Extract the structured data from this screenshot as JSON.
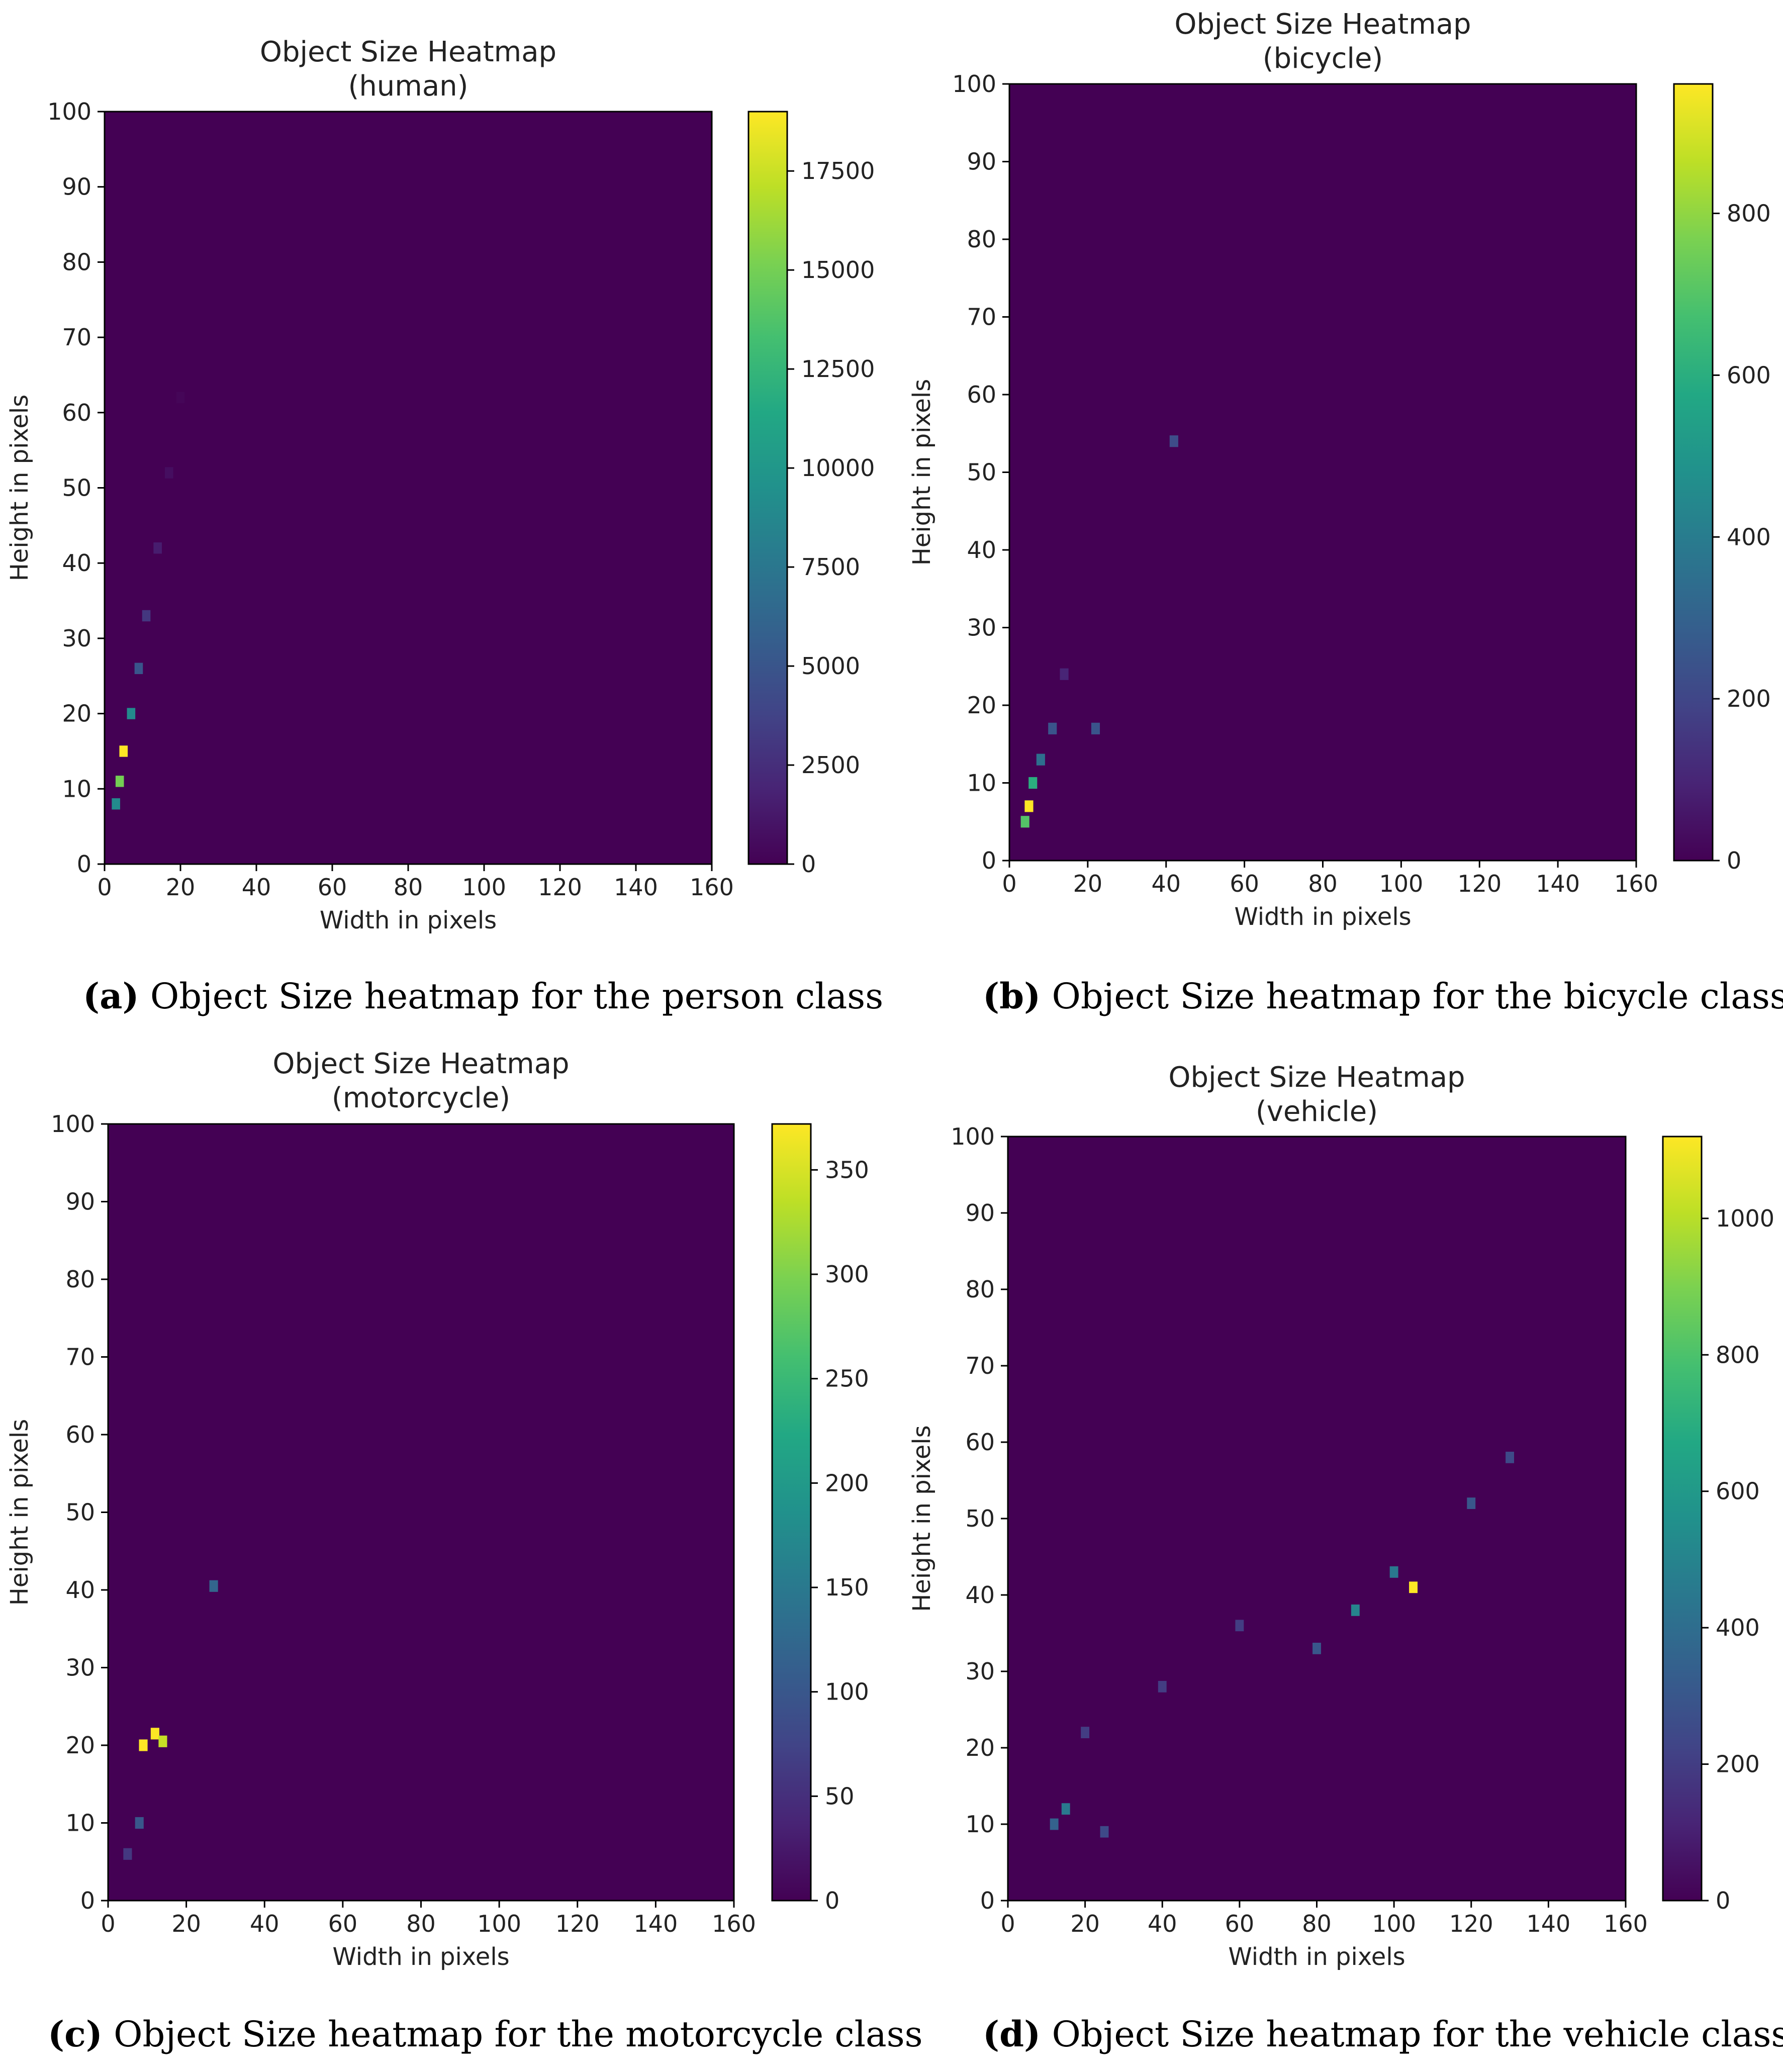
{
  "chart_data": [
    {
      "type": "heatmap",
      "title": "Object Size Heatmap",
      "subtitle": "(human)",
      "xlabel": "Width in pixels",
      "ylabel": "Height in pixels",
      "xlim": [
        0,
        160
      ],
      "ylim": [
        0,
        100
      ],
      "x_ticks": [
        "0",
        "20",
        "40",
        "60",
        "80",
        "100",
        "120",
        "140",
        "160"
      ],
      "y_ticks": [
        "0",
        "10",
        "20",
        "30",
        "40",
        "50",
        "60",
        "70",
        "80",
        "90",
        "100"
      ],
      "colorbar": {
        "min": 0,
        "max": 19000,
        "ticks": [
          "0",
          "2500",
          "5000",
          "7500",
          "10000",
          "12500",
          "15000",
          "17500"
        ],
        "tick_values": [
          0,
          2500,
          5000,
          7500,
          10000,
          12500,
          15000,
          17500
        ]
      },
      "colormap": "viridis",
      "hotspots": [
        {
          "x": 5,
          "y": 15,
          "count": 19000
        },
        {
          "x": 4,
          "y": 11,
          "count": 15000
        },
        {
          "x": 3,
          "y": 8,
          "count": 9000
        },
        {
          "x": 7,
          "y": 20,
          "count": 9000
        },
        {
          "x": 9,
          "y": 26,
          "count": 5000
        },
        {
          "x": 11,
          "y": 33,
          "count": 3000
        },
        {
          "x": 14,
          "y": 42,
          "count": 1500
        },
        {
          "x": 17,
          "y": 52,
          "count": 700
        },
        {
          "x": 20,
          "y": 62,
          "count": 250
        }
      ]
    },
    {
      "type": "heatmap",
      "title": "Object Size Heatmap",
      "subtitle": "(bicycle)",
      "xlabel": "Width in pixels",
      "ylabel": "Height in pixels",
      "xlim": [
        0,
        160
      ],
      "ylim": [
        0,
        100
      ],
      "x_ticks": [
        "0",
        "20",
        "40",
        "60",
        "80",
        "100",
        "120",
        "140",
        "160"
      ],
      "y_ticks": [
        "0",
        "10",
        "20",
        "30",
        "40",
        "50",
        "60",
        "70",
        "80",
        "90",
        "100"
      ],
      "colorbar": {
        "min": 0,
        "max": 960,
        "ticks": [
          "0",
          "200",
          "400",
          "600",
          "800"
        ],
        "tick_values": [
          0,
          200,
          400,
          600,
          800
        ]
      },
      "colormap": "viridis",
      "hotspots": [
        {
          "x": 5,
          "y": 7,
          "count": 960
        },
        {
          "x": 4,
          "y": 5,
          "count": 700
        },
        {
          "x": 6,
          "y": 10,
          "count": 600
        },
        {
          "x": 8,
          "y": 13,
          "count": 350
        },
        {
          "x": 11,
          "y": 17,
          "count": 250
        },
        {
          "x": 22,
          "y": 17,
          "count": 250
        },
        {
          "x": 14,
          "y": 24,
          "count": 100
        },
        {
          "x": 42,
          "y": 54,
          "count": 220
        }
      ]
    },
    {
      "type": "heatmap",
      "title": "Object Size Heatmap",
      "subtitle": "(motorcycle)",
      "xlabel": "Width in pixels",
      "ylabel": "Height in pixels",
      "xlim": [
        0,
        160
      ],
      "ylim": [
        0,
        100
      ],
      "x_ticks": [
        "0",
        "20",
        "40",
        "60",
        "80",
        "100",
        "120",
        "140",
        "160"
      ],
      "y_ticks": [
        "0",
        "10",
        "20",
        "30",
        "40",
        "50",
        "60",
        "70",
        "80",
        "90",
        "100"
      ],
      "colorbar": {
        "min": 0,
        "max": 372,
        "ticks": [
          "0",
          "50",
          "100",
          "150",
          "200",
          "250",
          "300",
          "350"
        ],
        "tick_values": [
          0,
          50,
          100,
          150,
          200,
          250,
          300,
          350
        ]
      },
      "colormap": "viridis",
      "hotspots": [
        {
          "x": 9,
          "y": 20,
          "count": 372
        },
        {
          "x": 12,
          "y": 21.5,
          "count": 372
        },
        {
          "x": 14,
          "y": 20.5,
          "count": 340
        },
        {
          "x": 8,
          "y": 10,
          "count": 100
        },
        {
          "x": 5,
          "y": 6,
          "count": 60
        },
        {
          "x": 27,
          "y": 40.5,
          "count": 120
        }
      ]
    },
    {
      "type": "heatmap",
      "title": "Object Size Heatmap",
      "subtitle": "(vehicle)",
      "xlabel": "Width in pixels",
      "ylabel": "Height in pixels",
      "xlim": [
        0,
        160
      ],
      "ylim": [
        0,
        100
      ],
      "x_ticks": [
        "0",
        "20",
        "40",
        "60",
        "80",
        "100",
        "120",
        "140",
        "160"
      ],
      "y_ticks": [
        "0",
        "10",
        "20",
        "30",
        "40",
        "50",
        "60",
        "70",
        "80",
        "90",
        "100"
      ],
      "colorbar": {
        "min": 0,
        "max": 1120,
        "ticks": [
          "0",
          "200",
          "400",
          "600",
          "800",
          "1000"
        ],
        "tick_values": [
          0,
          200,
          400,
          600,
          800,
          1000
        ]
      },
      "colormap": "viridis",
      "hotspots": [
        {
          "x": 105,
          "y": 41,
          "count": 1120
        },
        {
          "x": 90,
          "y": 38,
          "count": 500
        },
        {
          "x": 100,
          "y": 43,
          "count": 450
        },
        {
          "x": 15,
          "y": 12,
          "count": 450
        },
        {
          "x": 12,
          "y": 10,
          "count": 350
        },
        {
          "x": 120,
          "y": 52,
          "count": 300
        },
        {
          "x": 80,
          "y": 33,
          "count": 300
        },
        {
          "x": 130,
          "y": 58,
          "count": 250
        },
        {
          "x": 60,
          "y": 36,
          "count": 200
        },
        {
          "x": 40,
          "y": 28,
          "count": 200
        },
        {
          "x": 25,
          "y": 9,
          "count": 250
        },
        {
          "x": 20,
          "y": 22,
          "count": 200
        }
      ]
    }
  ],
  "captions": [
    {
      "label": "(a)",
      "text": "Object Size heatmap for the person class"
    },
    {
      "label": "(b)",
      "text": "Object Size heatmap for the bicycle class"
    },
    {
      "label": "(c)",
      "text": "Object Size heatmap for the motorcycle class"
    },
    {
      "label": "(d)",
      "text": "Object Size heatmap for the vehicle class"
    }
  ],
  "colors": {
    "background_dark": "#440154",
    "colormap_low": "#440154",
    "colormap_high": "#fde725"
  }
}
